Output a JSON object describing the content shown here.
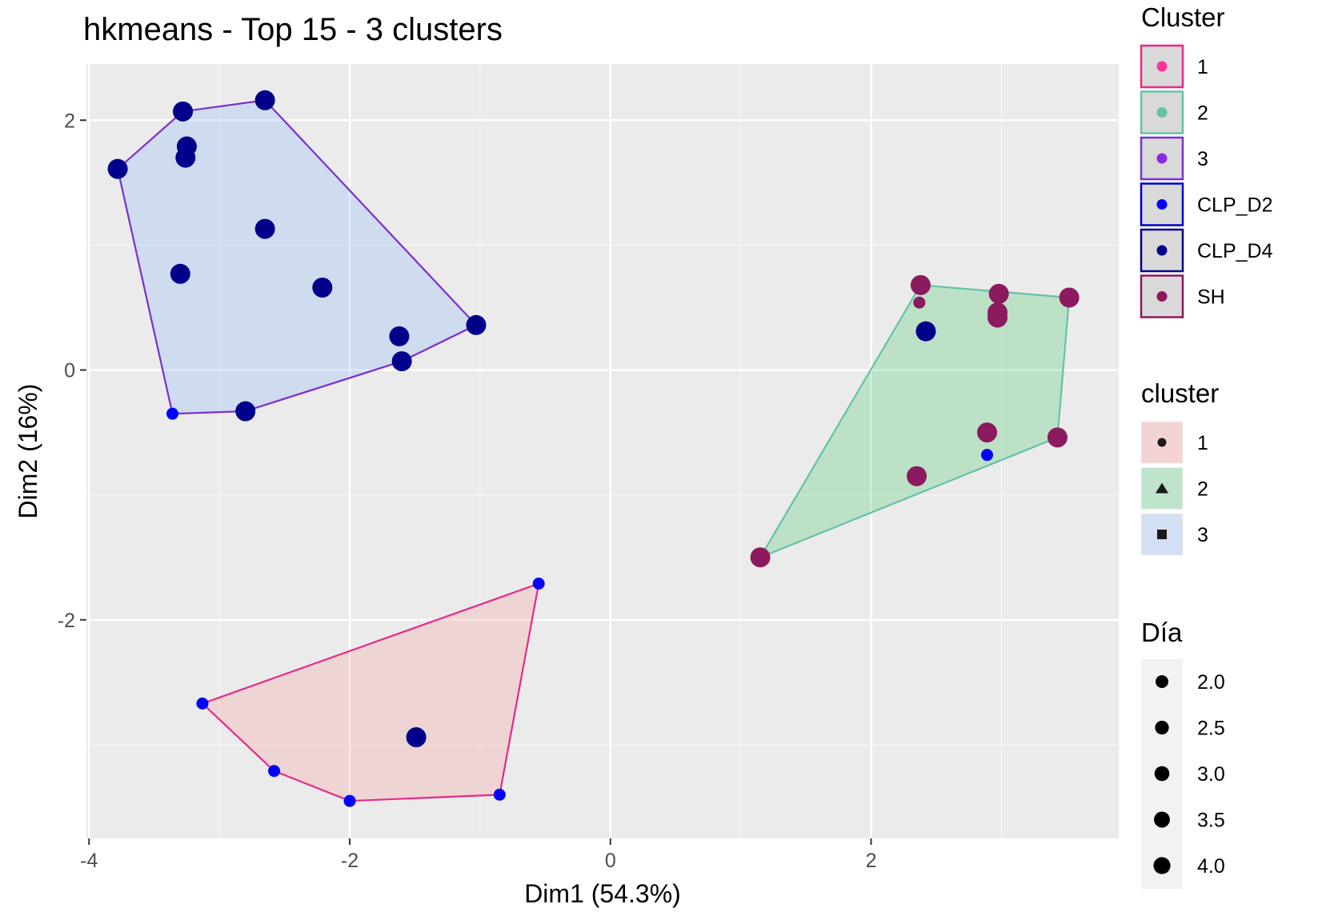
{
  "chart_data": {
    "type": "scatter",
    "title": "hkmeans - Top 15 - 3 clusters",
    "xlabel": "Dim1 (54.3%)",
    "ylabel": "Dim2 (16%)",
    "xlim": [
      -4.02,
      3.9
    ],
    "ylim": [
      -3.75,
      2.45
    ],
    "xticks": [
      -4,
      -2,
      0,
      2
    ],
    "yticks": [
      -2,
      0,
      2
    ],
    "xtick_labels": [
      "-4",
      "-2",
      "0",
      "2"
    ],
    "ytick_labels": [
      "-2",
      "0",
      "2"
    ],
    "grid": true,
    "legend_position": "right",
    "hulls": [
      {
        "cluster": "1",
        "fill": "#f8766d",
        "stroke": "#e7298a",
        "points": [
          [
            -0.55,
            -1.71
          ],
          [
            -0.85,
            -3.4
          ],
          [
            -2.0,
            -3.45
          ],
          [
            -2.58,
            -3.21
          ],
          [
            -3.13,
            -2.67
          ]
        ]
      },
      {
        "cluster": "2",
        "fill": "#00ba38",
        "stroke": "#66c2a5",
        "points": [
          [
            2.38,
            0.68
          ],
          [
            3.52,
            0.58
          ],
          [
            3.43,
            -0.54
          ],
          [
            1.15,
            -1.5
          ]
        ]
      },
      {
        "cluster": "3",
        "fill": "#619cff",
        "stroke": "#7b2fd0",
        "points": [
          [
            -2.65,
            2.16
          ],
          [
            -1.03,
            0.36
          ],
          [
            -1.6,
            0.07
          ],
          [
            -2.8,
            -0.33
          ],
          [
            -3.36,
            -0.35
          ],
          [
            -3.78,
            1.61
          ],
          [
            -3.28,
            2.07
          ]
        ]
      }
    ],
    "series": [
      {
        "name": "CLP_D2",
        "color": "#0000ff",
        "dia": 2.0,
        "points": [
          [
            -3.36,
            -0.35
          ],
          [
            -0.55,
            -1.71
          ],
          [
            -3.13,
            -2.67
          ],
          [
            -2.58,
            -3.21
          ],
          [
            -2.0,
            -3.45
          ],
          [
            -0.85,
            -3.4
          ],
          [
            2.89,
            -0.68
          ]
        ]
      },
      {
        "name": "CLP_D4",
        "color": "#00008b",
        "dia": 4.0,
        "points": [
          [
            -3.28,
            2.07
          ],
          [
            -2.65,
            2.16
          ],
          [
            -3.25,
            1.79
          ],
          [
            -3.26,
            1.7
          ],
          [
            -3.78,
            1.61
          ],
          [
            -2.65,
            1.13
          ],
          [
            -3.3,
            0.77
          ],
          [
            -2.21,
            0.66
          ],
          [
            -1.62,
            0.27
          ],
          [
            -1.03,
            0.36
          ],
          [
            -1.6,
            0.07
          ],
          [
            -2.8,
            -0.33
          ],
          [
            -1.49,
            -2.94
          ],
          [
            2.42,
            0.31
          ]
        ]
      },
      {
        "name": "SH",
        "color": "#8b1a5f",
        "dia": 4.0,
        "points": [
          [
            2.38,
            0.68
          ],
          [
            2.98,
            0.61
          ],
          [
            2.97,
            0.46
          ],
          [
            2.97,
            0.42
          ],
          [
            3.52,
            0.58
          ],
          [
            2.89,
            -0.5
          ],
          [
            3.43,
            -0.54
          ],
          [
            2.35,
            -0.85
          ],
          [
            1.15,
            -1.5
          ]
        ]
      },
      {
        "name": "SH",
        "color": "#8b1a5f",
        "dia": 2.0,
        "points": [
          [
            2.37,
            0.54
          ]
        ]
      }
    ],
    "legend_colour": {
      "title": "Cluster",
      "items": [
        {
          "label": "1",
          "fill": "#d9d9d9",
          "border": "#e7298a",
          "dot": "#ff3399"
        },
        {
          "label": "2",
          "fill": "#d9d9d9",
          "border": "#66c2a5",
          "dot": "#66c2a5"
        },
        {
          "label": "3",
          "fill": "#d9d9d9",
          "border": "#7b2fd0",
          "dot": "#8a2be2"
        },
        {
          "label": "CLP_D2",
          "fill": "#d9d9d9",
          "border": "#0000cd",
          "dot": "#0000ff"
        },
        {
          "label": "CLP_D4",
          "fill": "#d9d9d9",
          "border": "#00008b",
          "dot": "#00008b"
        },
        {
          "label": "SH",
          "fill": "#d9d9d9",
          "border": "#8b1a5f",
          "dot": "#8b1a5f"
        }
      ]
    },
    "legend_fill": {
      "title": "cluster",
      "items": [
        {
          "label": "1",
          "fill": "#f3d3d3",
          "shape": "circle"
        },
        {
          "label": "2",
          "fill": "#bfe3cb",
          "shape": "triangle"
        },
        {
          "label": "3",
          "fill": "#d3dff2",
          "shape": "square"
        }
      ]
    },
    "legend_size": {
      "title": "Día",
      "items": [
        {
          "label": "2.0",
          "value": 2.0
        },
        {
          "label": "2.5",
          "value": 2.5
        },
        {
          "label": "3.0",
          "value": 3.0
        },
        {
          "label": "3.5",
          "value": 3.5
        },
        {
          "label": "4.0",
          "value": 4.0
        }
      ]
    }
  }
}
